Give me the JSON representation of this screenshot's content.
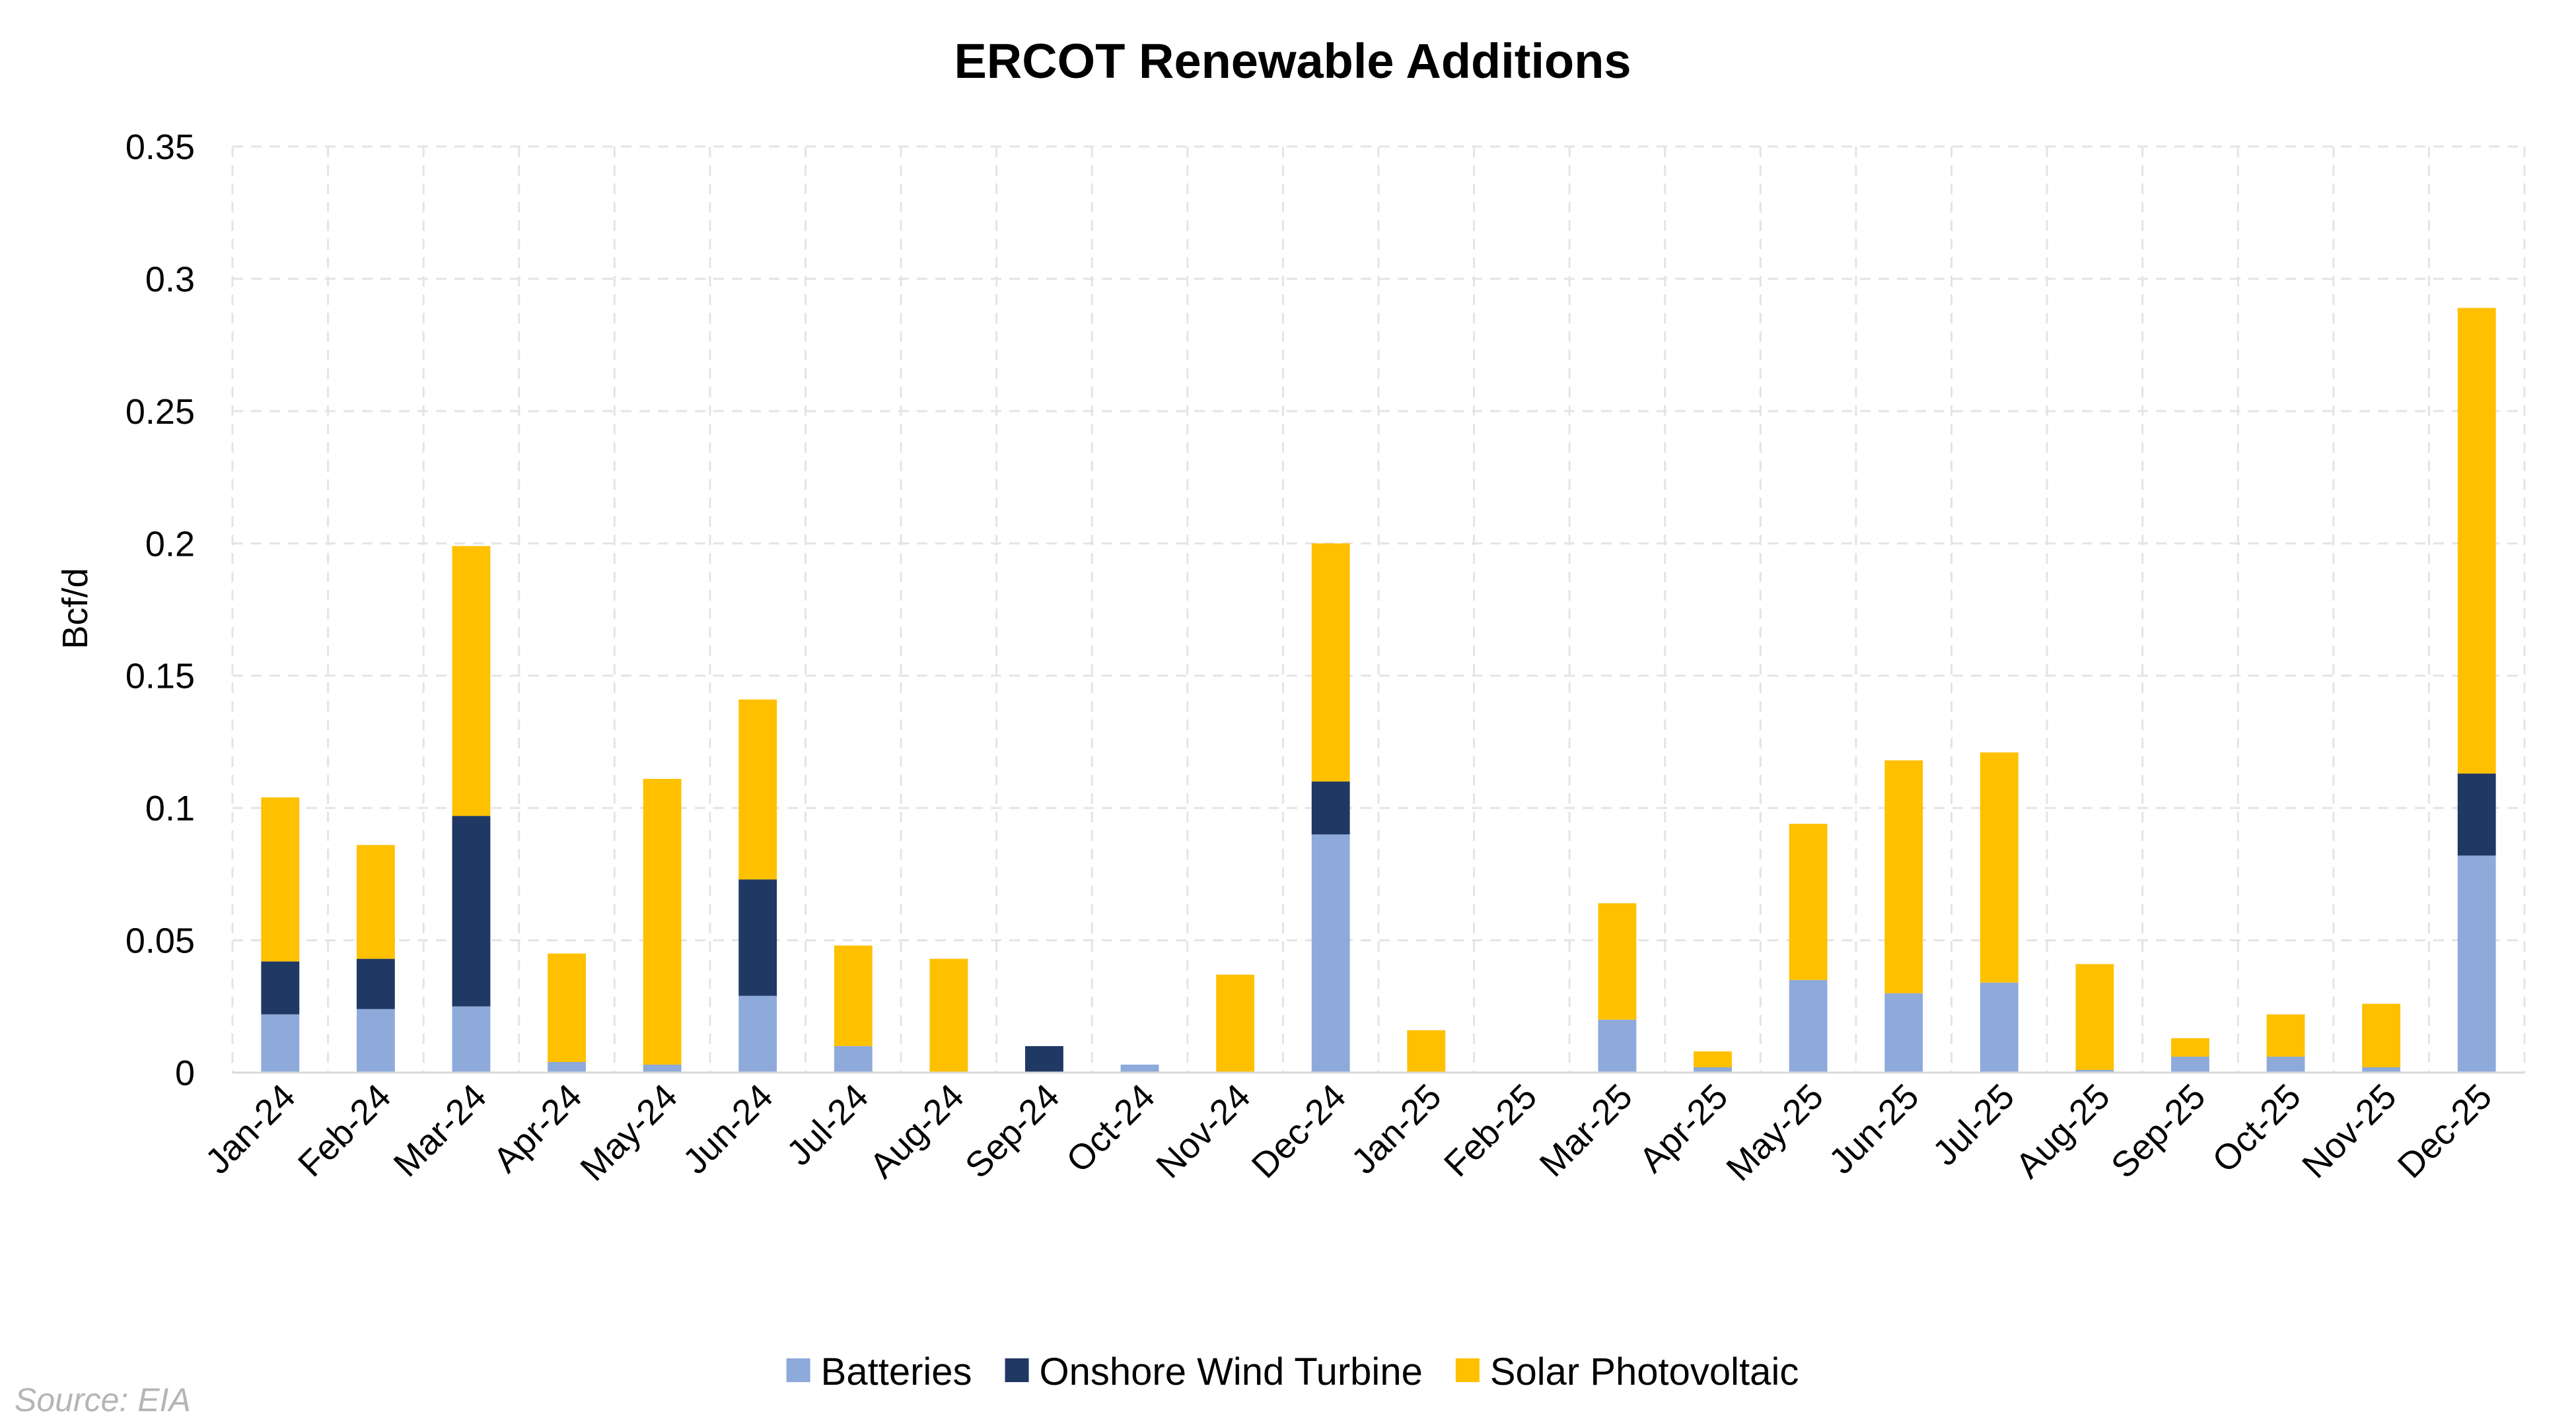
{
  "chart_data": {
    "type": "bar",
    "stacked": true,
    "title": "ERCOT Renewable Additions",
    "xlabel": "",
    "ylabel": "Bcf/d",
    "ylim": [
      0,
      0.35
    ],
    "yticks": [
      0,
      0.05,
      0.1,
      0.15,
      0.2,
      0.25,
      0.3,
      0.35
    ],
    "ytick_labels": [
      "0",
      "0.05",
      "0.1",
      "0.15",
      "0.2",
      "0.25",
      "0.3",
      "0.35"
    ],
    "grid": true,
    "legend_position": "bottom-center",
    "categories": [
      "Jan-24",
      "Feb-24",
      "Mar-24",
      "Apr-24",
      "May-24",
      "Jun-24",
      "Jul-24",
      "Aug-24",
      "Sep-24",
      "Oct-24",
      "Nov-24",
      "Dec-24",
      "Jan-25",
      "Feb-25",
      "Mar-25",
      "Apr-25",
      "May-25",
      "Jun-25",
      "Jul-25",
      "Aug-25",
      "Sep-25",
      "Oct-25",
      "Nov-25",
      "Dec-25"
    ],
    "series": [
      {
        "name": "Batteries",
        "color": "#8eaadb",
        "values": [
          0.022,
          0.024,
          0.025,
          0.004,
          0.003,
          0.029,
          0.01,
          0.0,
          0.0,
          0.003,
          0.0,
          0.09,
          0.0,
          0.0,
          0.02,
          0.002,
          0.035,
          0.03,
          0.034,
          0.001,
          0.006,
          0.006,
          0.002,
          0.082
        ]
      },
      {
        "name": "Onshore Wind Turbine",
        "color": "#203864",
        "values": [
          0.02,
          0.019,
          0.072,
          0.0,
          0.0,
          0.044,
          0.0,
          0.0,
          0.01,
          0.0,
          0.0,
          0.02,
          0.0,
          0.0,
          0.0,
          0.0,
          0.0,
          0.0,
          0.0,
          0.0,
          0.0,
          0.0,
          0.0,
          0.031
        ]
      },
      {
        "name": "Solar Photovoltaic",
        "color": "#ffc000",
        "values": [
          0.062,
          0.043,
          0.102,
          0.041,
          0.108,
          0.068,
          0.038,
          0.043,
          0.0,
          0.0,
          0.037,
          0.09,
          0.016,
          0.0,
          0.044,
          0.006,
          0.059,
          0.088,
          0.087,
          0.04,
          0.007,
          0.016,
          0.024,
          0.176
        ]
      }
    ]
  },
  "source": "Source: EIA"
}
